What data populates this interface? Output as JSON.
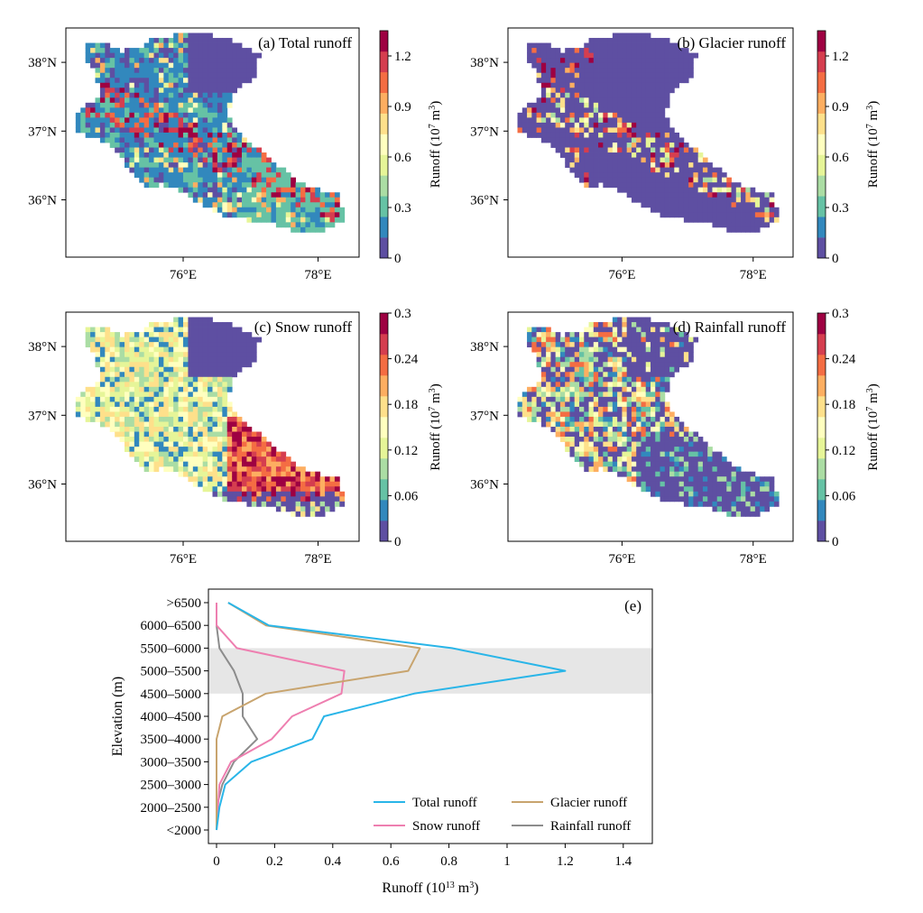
{
  "colors": {
    "ramp": [
      "#5e4fa2",
      "#3288bd",
      "#66c2a5",
      "#abdda4",
      "#e6f598",
      "#ffffbf",
      "#fee08b",
      "#fdae61",
      "#f46d43",
      "#d53e4f",
      "#9e0142"
    ],
    "shade": "#e6e6e6",
    "total": "#29b5e8",
    "glacier": "#c8a46e",
    "snow": "#ee7fb0",
    "rain": "#8c8c8c"
  },
  "maps": [
    {
      "label": "(a) Total runoff",
      "variant": "total",
      "cbar_ticks": [
        "0",
        "0.3",
        "0.6",
        "0.9",
        "1.2"
      ],
      "cbar_max": 1.35,
      "cbar_label": "Runoff (10",
      "cbar_exp": "7",
      "cbar_unit": " m",
      "cbar_unit_exp": "3",
      "cbar_close": ")",
      "lat_ticks": [
        "38°N",
        "37°N",
        "36°N"
      ],
      "lon_ticks": [
        "76°E",
        "78°E"
      ]
    },
    {
      "label": "(b) Glacier runoff",
      "variant": "glacier",
      "cbar_ticks": [
        "0",
        "0.3",
        "0.6",
        "0.9",
        "1.2"
      ],
      "cbar_max": 1.35,
      "cbar_label": "Runoff (10",
      "cbar_exp": "7",
      "cbar_unit": " m",
      "cbar_unit_exp": "3",
      "cbar_close": ")",
      "lat_ticks": [
        "38°N",
        "37°N",
        "36°N"
      ],
      "lon_ticks": [
        "76°E",
        "78°E"
      ]
    },
    {
      "label": "(c) Snow runoff",
      "variant": "snow",
      "cbar_ticks": [
        "0",
        "0.06",
        "0.12",
        "0.18",
        "0.24",
        "0.3"
      ],
      "cbar_max": 0.3,
      "cbar_label": "Runoff (10",
      "cbar_exp": "7",
      "cbar_unit": " m",
      "cbar_unit_exp": "3",
      "cbar_close": ")",
      "lat_ticks": [
        "38°N",
        "37°N",
        "36°N"
      ],
      "lon_ticks": [
        "76°E",
        "78°E"
      ]
    },
    {
      "label": "(d) Rainfall runoff",
      "variant": "rain",
      "cbar_ticks": [
        "0",
        "0.06",
        "0.12",
        "0.18",
        "0.24",
        "0.3"
      ],
      "cbar_max": 0.3,
      "cbar_label": "Runoff (10",
      "cbar_exp": "7",
      "cbar_unit": " m",
      "cbar_unit_exp": "3",
      "cbar_close": ")",
      "lat_ticks": [
        "38°N",
        "37°N",
        "36°N"
      ],
      "lon_ticks": [
        "76°E",
        "78°E"
      ]
    }
  ],
  "chart_data": {
    "type": "line",
    "panel_label": "(e)",
    "title": "",
    "xlabel": "Runoff (10",
    "xlabel_exp": "13",
    "xlabel_unit": " m",
    "xlabel_unit_exp": "3",
    "xlabel_close": ")",
    "ylabel": "Elevation (m)",
    "xlim": [
      0,
      1.5
    ],
    "xticks": [
      "0",
      "0.2",
      "0.4",
      "0.6",
      "0.8",
      "1",
      "1.2",
      "1.4"
    ],
    "xtick_values": [
      0,
      0.2,
      0.4,
      0.6,
      0.8,
      1,
      1.2,
      1.4
    ],
    "categories": [
      "<2000",
      "2000–2500",
      "2500–3000",
      "3000–3500",
      "3500–4000",
      "4000–4500",
      "4500–5000",
      "5000–5500",
      "5500–6000",
      "6000–6500",
      ">6500"
    ],
    "shaded_band": [
      "4500–5000",
      "5500–6000"
    ],
    "grid": false,
    "legend_position": "bottom-right",
    "series": [
      {
        "name": "Total runoff",
        "color": "#29b5e8",
        "values": [
          0.0,
          0.01,
          0.03,
          0.12,
          0.33,
          0.37,
          0.68,
          1.2,
          0.81,
          0.18,
          0.04
        ]
      },
      {
        "name": "Glacier runoff",
        "color": "#c8a46e",
        "values": [
          0.0,
          0.0,
          0.0,
          0.0,
          0.0,
          0.02,
          0.17,
          0.66,
          0.7,
          0.17,
          0.04
        ]
      },
      {
        "name": "Snow runoff",
        "color": "#ee7fb0",
        "values": [
          0.0,
          0.005,
          0.01,
          0.05,
          0.19,
          0.26,
          0.43,
          0.44,
          0.07,
          0.0,
          0.0
        ]
      },
      {
        "name": "Rainfall runoff",
        "color": "#8c8c8c",
        "values": [
          0.0,
          0.0,
          0.02,
          0.06,
          0.14,
          0.09,
          0.09,
          0.06,
          0.01,
          0.0,
          0.0
        ]
      }
    ]
  }
}
